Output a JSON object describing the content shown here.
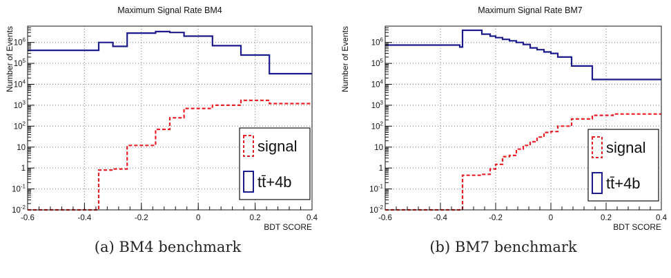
{
  "chart_data": [
    {
      "type": "step",
      "title": "Maximum Signal Rate BM4",
      "xlabel": "BDT SCORE",
      "ylabel": "Number of Events",
      "xlim": [
        -0.6,
        0.4
      ],
      "ylim": [
        0.01,
        6000000
      ],
      "yscale": "log",
      "grid": true,
      "legend_position": "bottom-right",
      "x_ticks": [
        "-0.6",
        "-0.4",
        "-0.2",
        "0",
        "0.2",
        "0.4"
      ],
      "bin_edges": [
        -0.6,
        -0.35,
        -0.3,
        -0.25,
        -0.2,
        -0.15,
        -0.1,
        -0.05,
        0.05,
        0.15,
        0.25,
        0.4
      ],
      "series": [
        {
          "name": "signal",
          "color": "#ee1c24",
          "dash": true,
          "values": [
            0.01,
            0.8,
            0.9,
            12,
            12,
            70,
            250,
            700,
            1000,
            1700,
            1200
          ]
        },
        {
          "name": "tt̄+4b",
          "color": "#1a1a8c",
          "dash": false,
          "values": [
            420000,
            1000000,
            650000,
            2800000,
            2800000,
            3300000,
            3000000,
            2000000,
            700000,
            250000,
            32000
          ]
        }
      ],
      "caption": "(a) BM4 benchmark"
    },
    {
      "type": "step",
      "title": "Maximum Signal Rate BM7",
      "xlabel": "BDT SCORE",
      "ylabel": "Number of Events",
      "xlim": [
        -0.6,
        0.4
      ],
      "ylim": [
        0.01,
        6000000
      ],
      "yscale": "log",
      "grid": true,
      "legend_position": "bottom-right",
      "x_ticks": [
        "-0.6",
        "-0.4",
        "-0.2",
        "0",
        "0.2",
        "0.4"
      ],
      "bin_edges": [
        -0.6,
        -0.33,
        -0.32,
        -0.25,
        -0.22,
        -0.2,
        -0.175,
        -0.15,
        -0.125,
        -0.1,
        -0.075,
        -0.05,
        -0.025,
        0,
        0.025,
        0.075,
        0.15,
        0.225,
        0.4
      ],
      "series": [
        {
          "name": "signal",
          "color": "#ee1c24",
          "dash": true,
          "values": [
            0.01,
            0.01,
            0.45,
            0.5,
            0.9,
            1.5,
            3.5,
            4,
            8,
            12,
            18,
            30,
            50,
            55,
            100,
            220,
            330,
            380
          ]
        },
        {
          "name": "tt̄+4b",
          "color": "#1a1a8c",
          "dash": false,
          "values": [
            750000,
            600000,
            3800000,
            2500000,
            2000000,
            1700000,
            1400000,
            1200000,
            1000000,
            800000,
            550000,
            450000,
            350000,
            300000,
            200000,
            75000,
            17000,
            17000
          ]
        }
      ],
      "caption": "(b) BM7 benchmark"
    }
  ]
}
